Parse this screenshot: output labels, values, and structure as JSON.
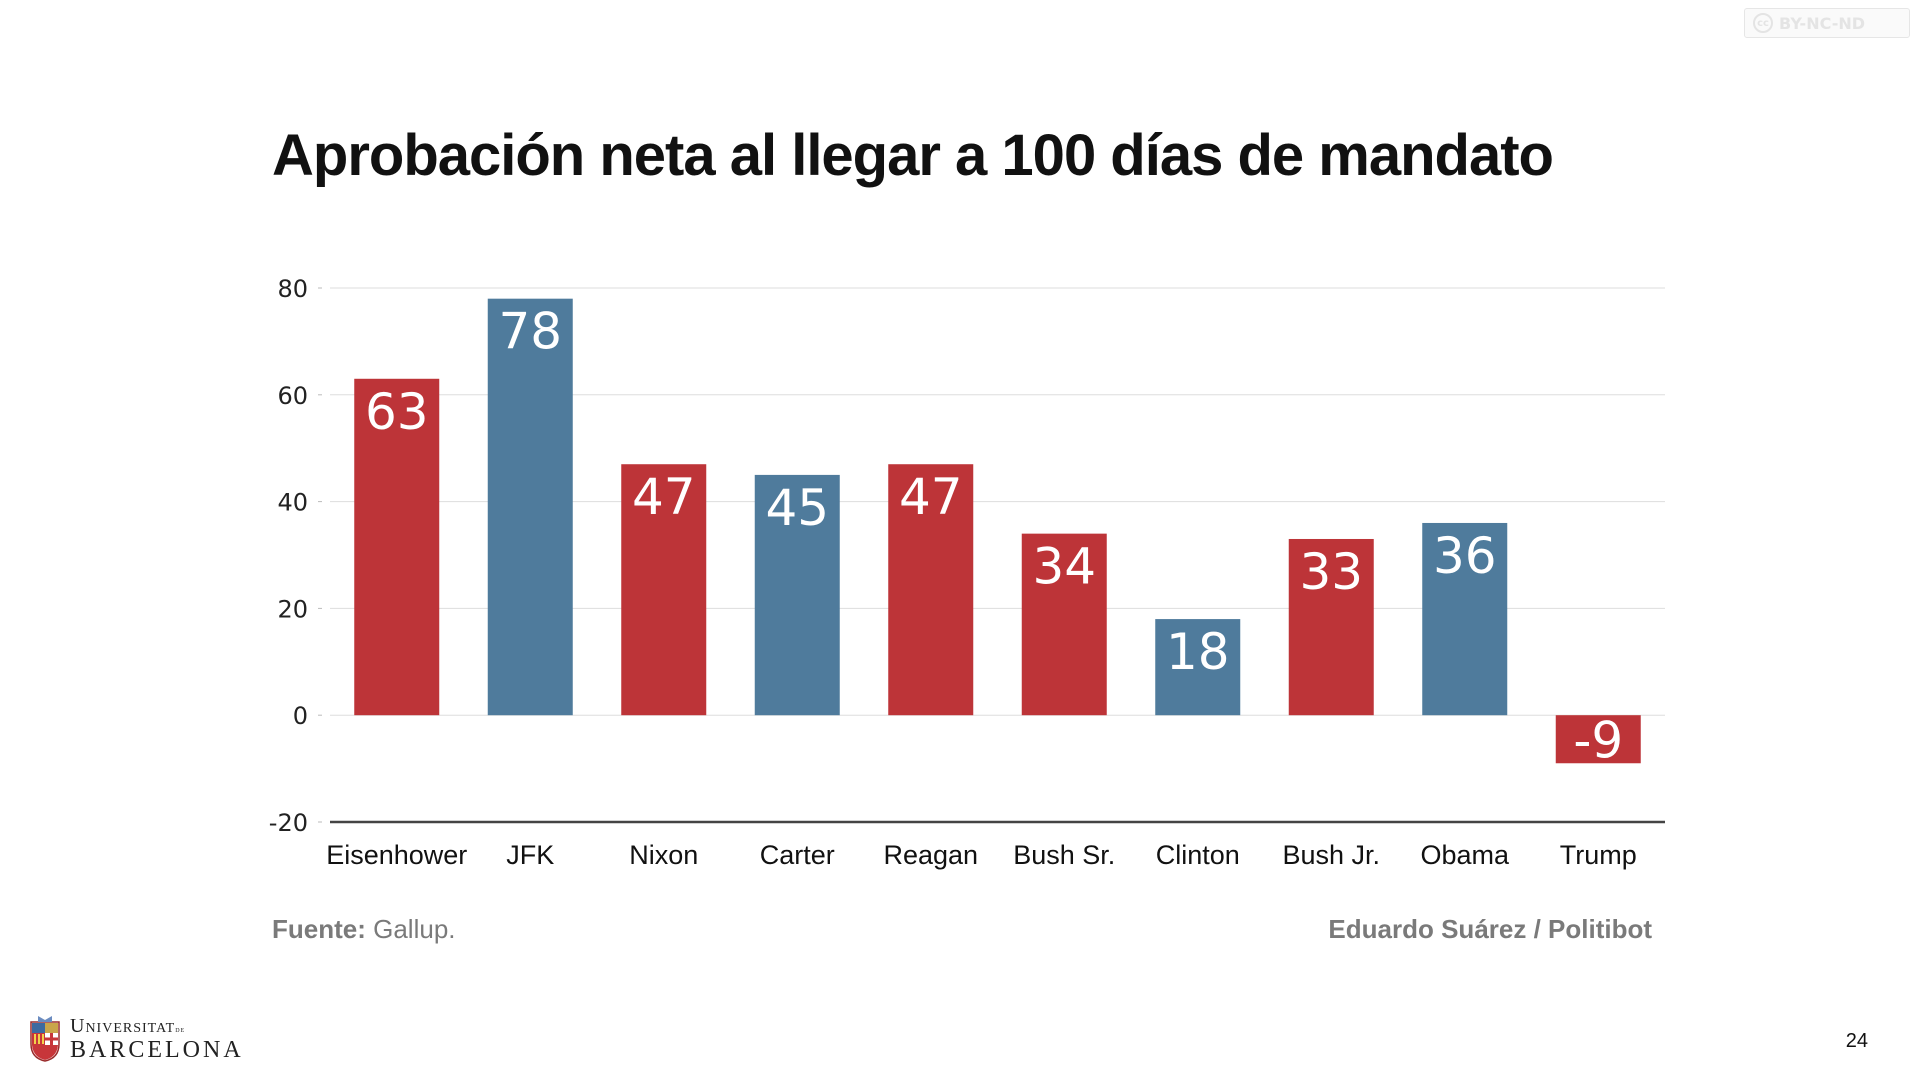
{
  "slide": {
    "title": "Aprobación neta al llegar a 100 días de mandato",
    "source_label": "Fuente:",
    "source_value": "Gallup.",
    "credit": "Eduardo Suárez / Politibot",
    "license": "BY-NC-ND",
    "license_icon": "cc",
    "page_number": "24",
    "logo": {
      "line1": "Universitat",
      "line1_small": "de",
      "line2": "BARCELONA",
      "icon": "university-shield-icon"
    }
  },
  "chart_data": {
    "type": "bar",
    "title": "",
    "xlabel": "",
    "ylabel": "",
    "ylim": [
      -20,
      80
    ],
    "yticks": [
      80,
      60,
      40,
      20,
      0,
      -20
    ],
    "grid": true,
    "categories": [
      "Eisenhower",
      "JFK",
      "Nixon",
      "Carter",
      "Reagan",
      "Bush Sr.",
      "Clinton",
      "Bush Jr.",
      "Obama",
      "Trump"
    ],
    "values": [
      63,
      78,
      47,
      45,
      47,
      34,
      18,
      33,
      36,
      -9
    ],
    "party": [
      "R",
      "D",
      "R",
      "D",
      "R",
      "R",
      "D",
      "R",
      "D",
      "R"
    ],
    "colors": {
      "R": "#bd3438",
      "D": "#4f7b9c"
    },
    "data_labels": true
  }
}
